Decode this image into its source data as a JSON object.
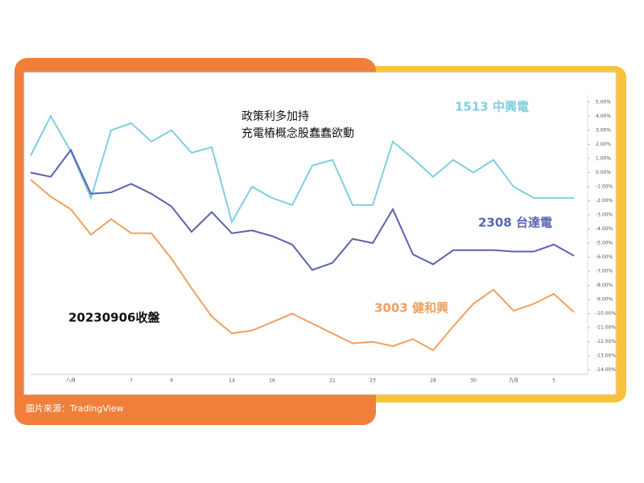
{
  "chart_data": {
    "type": "line",
    "annotation": [
      "政策利多加持",
      "充電樁概念股蠢蠢欲動"
    ],
    "date_note": "20230906收盤",
    "source": "圖片來源：TradingView",
    "categories": [
      null,
      null,
      "八月",
      null,
      null,
      "7",
      null,
      "9",
      null,
      null,
      "14",
      null,
      "16",
      null,
      null,
      "21",
      null,
      "23",
      null,
      null,
      "28",
      null,
      "30",
      null,
      "九月",
      null,
      "5",
      null
    ],
    "series": [
      {
        "name": "1513 中興電",
        "color": "#7fcfe0",
        "values": [
          1.2,
          4.0,
          1.5,
          -1.8,
          3.0,
          3.5,
          2.2,
          3.0,
          1.4,
          1.8,
          -3.5,
          -1.0,
          -1.8,
          -2.3,
          0.5,
          0.9,
          -2.3,
          -2.3,
          2.2,
          1.0,
          -0.3,
          0.9,
          0.0,
          0.9,
          -1.0,
          -1.8,
          -1.8,
          -1.8
        ]
      },
      {
        "name": "2308 台達電",
        "color": "#5b63b0",
        "values": [
          0,
          -0.3,
          1.6,
          -1.5,
          -1.4,
          -0.8,
          -1.5,
          -2.4,
          -4.2,
          -2.8,
          -4.3,
          -4.1,
          -4.5,
          -5.1,
          -6.9,
          -6.4,
          -4.7,
          -5.0,
          -2.6,
          -5.8,
          -6.5,
          -5.5,
          -5.5,
          -5.5,
          -5.6,
          -5.6,
          -5.1,
          -5.9
        ]
      },
      {
        "name": "3003 健和興",
        "color": "#f0a060",
        "values": [
          -0.5,
          -1.7,
          -2.6,
          -4.4,
          -3.3,
          -4.3,
          -4.3,
          -6.1,
          -8.2,
          -10.2,
          -11.4,
          -11.2,
          -10.6,
          -10.0,
          -10.7,
          -11.4,
          -12.1,
          -12.0,
          -12.3,
          -11.8,
          -12.6,
          -10.9,
          -9.3,
          -8.3,
          -9.8,
          -9.3,
          -8.6,
          -9.9
        ]
      }
    ],
    "ylim": [
      -14.3,
      5.5
    ],
    "yticks": [
      {
        "value": 5,
        "label": "5.00%"
      },
      {
        "value": 4,
        "label": "4.00%"
      },
      {
        "value": 3,
        "label": "3.00%"
      },
      {
        "value": 2,
        "label": "2.00%"
      },
      {
        "value": 1,
        "label": "1.00%"
      },
      {
        "value": 0,
        "label": "0.00%"
      },
      {
        "value": -1,
        "label": "-1.00%"
      },
      {
        "value": -2,
        "label": "-2.00%"
      },
      {
        "value": -3,
        "label": "-3.00%"
      },
      {
        "value": -4,
        "label": "-4.00%"
      },
      {
        "value": -5,
        "label": "-5.00%"
      },
      {
        "value": -6,
        "label": "-6.00%"
      },
      {
        "value": -7,
        "label": "-7.00%"
      },
      {
        "value": -8,
        "label": "-8.00%"
      },
      {
        "value": -9,
        "label": "-9.00%"
      },
      {
        "value": -10,
        "label": "-10.00%"
      },
      {
        "value": -11,
        "label": "-11.00%"
      },
      {
        "value": -12,
        "label": "-12.00%"
      },
      {
        "value": -13,
        "label": "-13.00%"
      },
      {
        "value": -14,
        "label": "-14.00%"
      }
    ]
  }
}
